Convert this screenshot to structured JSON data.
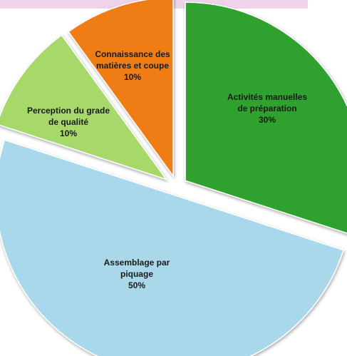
{
  "chart_data": {
    "type": "pie",
    "title": "",
    "categories": [
      "Activités manuelles de préparation",
      "Assemblage par piquage",
      "Perception du grade de qualité",
      "Connaissance des matières et coupe"
    ],
    "values": [
      30,
      50,
      10,
      10
    ],
    "value_labels": [
      "30%",
      "50%",
      "10%",
      "10%"
    ],
    "colors": [
      "#2ea12e",
      "#a9d8ea",
      "#a7d96b",
      "#f07c17"
    ],
    "exploded": true,
    "legend": "none",
    "slice_labels": [
      [
        "Activités manuelles",
        "de préparation",
        "30%"
      ],
      [
        "Assemblage par",
        "piquage",
        "50%"
      ],
      [
        "Perception du grade",
        "de qualité",
        "10%"
      ],
      [
        "Connaissance  des",
        "matières et coupe",
        "10%"
      ]
    ]
  }
}
